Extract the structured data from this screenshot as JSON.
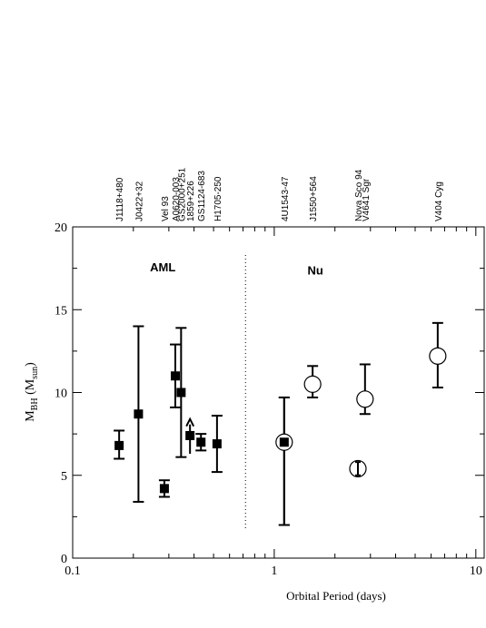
{
  "chart_data": {
    "type": "scatter",
    "title": "",
    "xlabel": "Orbital Period (days)",
    "ylabel_main": "M",
    "ylabel_sub": "BH",
    "ylabel_unit_open": " (M",
    "ylabel_unit_sub": "sun",
    "ylabel_unit_close": ")",
    "x_scale": "log",
    "xlim": [
      0.1,
      11
    ],
    "ylim": [
      0,
      20
    ],
    "x_ticks": [
      {
        "value": 0.1,
        "label": "0.1"
      },
      {
        "value": 1,
        "label": "1"
      },
      {
        "value": 10,
        "label": "10"
      }
    ],
    "y_ticks": [
      {
        "value": 0,
        "label": "0"
      },
      {
        "value": 5,
        "label": "5"
      },
      {
        "value": 10,
        "label": "10"
      },
      {
        "value": 15,
        "label": "15"
      },
      {
        "value": 20,
        "label": "20"
      }
    ],
    "grid": false,
    "divider_x": 0.72,
    "region_labels": [
      {
        "text": "AML",
        "x": 0.28,
        "y": 17.6
      },
      {
        "text": "Nu",
        "x": 1.6,
        "y": 17.4
      }
    ],
    "top_labels": [
      {
        "text": "J1118+480",
        "x": 0.17
      },
      {
        "text": "J0422+32",
        "x": 0.212
      },
      {
        "text": "Vel 93",
        "x": 0.285
      },
      {
        "text": "A0620-003",
        "x": 0.323
      },
      {
        "text": "GS2000+251",
        "x": 0.345
      },
      {
        "text": "1859+226",
        "x": 0.382
      },
      {
        "text": "GS1124-683",
        "x": 0.433
      },
      {
        "text": "H1705-250",
        "x": 0.52
      },
      {
        "text": "4U1543-47",
        "x": 1.12
      },
      {
        "text": "J1550+564",
        "x": 1.55
      },
      {
        "text": "Nova Sco 94",
        "x": 2.6
      },
      {
        "text": "V4641 Sgr",
        "x": 2.82
      },
      {
        "text": "V404 Cyg",
        "x": 6.47
      }
    ],
    "series": [
      {
        "marker": "filled-square",
        "points": [
          {
            "x": 0.17,
            "y": 6.8,
            "low": 6.0,
            "high": 7.7
          },
          {
            "x": 0.212,
            "y": 8.7,
            "low": 3.4,
            "high": 14.0
          },
          {
            "x": 0.285,
            "y": 4.2,
            "low": 3.7,
            "high": 4.7
          },
          {
            "x": 0.323,
            "y": 11.0,
            "low": 9.1,
            "high": 12.9
          },
          {
            "x": 0.345,
            "y": 10.0,
            "low": 6.1,
            "high": 13.9
          },
          {
            "x": 0.382,
            "y": 7.4,
            "low": 6.3,
            "high": 8.4,
            "lower_limit": true
          },
          {
            "x": 0.433,
            "y": 7.0,
            "low": 6.5,
            "high": 7.5
          },
          {
            "x": 0.52,
            "y": 6.9,
            "low": 5.2,
            "high": 8.6
          },
          {
            "x": 1.12,
            "y": 7.0,
            "low": 2.0,
            "high": 9.7
          }
        ]
      },
      {
        "marker": "open-circle",
        "points": [
          {
            "x": 1.12,
            "y": 7.0,
            "low": 2.0,
            "high": 9.7
          },
          {
            "x": 1.55,
            "y": 10.5,
            "low": 9.7,
            "high": 11.6
          },
          {
            "x": 2.82,
            "y": 9.6,
            "low": 8.7,
            "high": 11.7
          },
          {
            "x": 6.47,
            "y": 12.2,
            "low": 10.3,
            "high": 14.2
          }
        ]
      },
      {
        "marker": "open-circle-with-errorbar",
        "points": [
          {
            "x": 2.6,
            "y": 5.4,
            "low": 5.0,
            "high": 5.8
          }
        ]
      }
    ]
  }
}
